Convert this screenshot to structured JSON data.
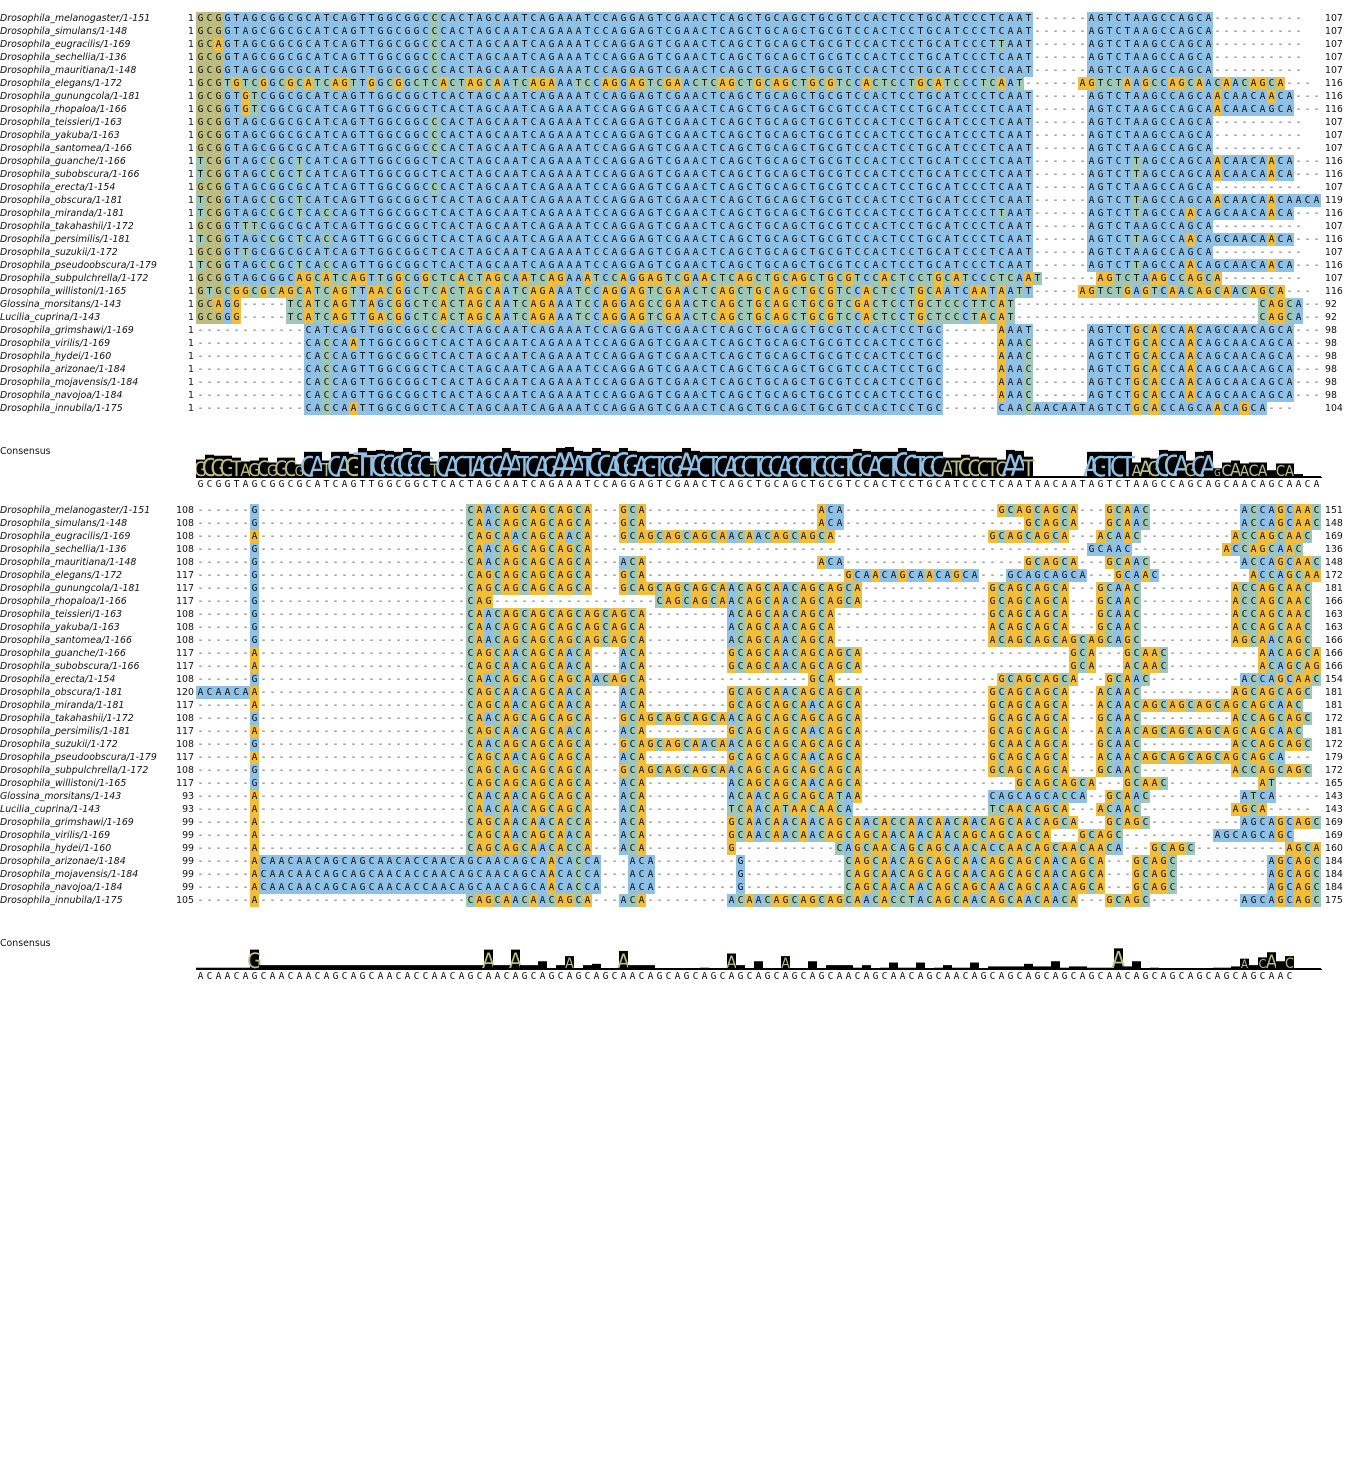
{
  "colors": {
    "blue": "#8fc1e6",
    "green": "#9fc7b8",
    "olive": "#bdbd82",
    "orange": "#f2bd3a",
    "logo_bg": "#000000"
  },
  "consensus_label": "Consensus",
  "blocks": [
    {
      "consensus": "GCGGTAGCGGCGCATCAGTTGGCGGCTCACTAGCAATCAGAAATCCAGGAGTCGAACTCAGCTGCAGCTGCGTCCACTCCTGCATCCCTCAATAACAATAGTCTAAGCCAGCAGCAACAGCAACA",
      "rows": [
        {
          "name": "Drosophila_melanogaster/1-151",
          "start": "1",
          "end": "107",
          "seq": "GCGGTAGCGGCGCATCAGTTGGCGGCCCACTAGCAATCAGAAATCCAGGAGTCGAACTCAGCTGCAGCTGCGTCCACTCCTGCATCCCTCAAT------AGTCTAAGCCAGCA----------"
        },
        {
          "name": "Drosophila_simulans/1-148",
          "start": "1",
          "end": "107",
          "seq": "GCGGTAGCGGCGCATCAGTTGGCGGCCCACTAGCAATCAGAAATCCAGGAGTCGAACTCAGCTGCAGCTGCGTCCACTCCTGCATCCCTCAAT------AGTCTAAGCCAGCA----------"
        },
        {
          "name": "Drosophila_eugracilis/1-169",
          "start": "1",
          "end": "107",
          "seq": "GCAGTAGCGGCGCATCAGTTGGCGGCCCACTAGCAATCAGAAATCCAGGAGTCGAACTCAGCTGCAGCTGCGTCCACTCCTGCATCCCTTAAT------AGTCTAAGCCAGCA----------"
        },
        {
          "name": "Drosophila_sechellia/1-136",
          "start": "1",
          "end": "107",
          "seq": "GCGGTAGCGGCGCATCAGTTGGCGGCCCACTAGCAATCAGAAATCCAGGAGTCGAACTCAGCTGCAGCTGCGTCCACTCCTGCATCCCTCAAT------AGTCTAAGCCAGCA----------"
        },
        {
          "name": "Drosophila_mauritiana/1-148",
          "start": "1",
          "end": "107",
          "seq": "GCGGTAGCGGCGCATCAGTTGGCGGCCCACTAGCAATCAGAAATCCAGGAGTCGAACTCAGCTGCAGCTGCGTCCACTCCTGCATCCCTCAAT------AGTCTAAGCCAGCA----------"
        },
        {
          "name": "Drosophila_elegans/1-172",
          "start": "1",
          "end": "116",
          "seq": "GCGTGTCGGCGCATCAGTTGGCGGCTCACTAGCAATCAGAAATCCAGGAGTCGAACTCAGCTGCAGCTGCGTCCACTCCTGCATCCCTCAAT------AGTCTAAGCCAGCAACAACAGCA---"
        },
        {
          "name": "Drosophila_gunungcola/1-181",
          "start": "1",
          "end": "116",
          "seq": "GCGGTGTCGGCGCATCAGTTGGCGGCTCACTAGCAATCAGAAATCCAGGAGTCGAACTCAGCTGCAGCTGCGTCCACTCCTGCATCCCTCAAT------AGTCTAAGCCAGCAACAACAACA---"
        },
        {
          "name": "Drosophila_rhopaloa/1-166",
          "start": "1",
          "end": "116",
          "seq": "GCGGTGTCGGCGCATCAGTTGGCGGCTCACTAGCAATCAGAAATCCAGGAGTCGAACTCAGCTGCAGCTGCGTCCACTCCTGCATCCCTCAAT------AGTCTAAGCCAGCAACAACAGCA---"
        },
        {
          "name": "Drosophila_teissieri/1-163",
          "start": "1",
          "end": "107",
          "seq": "GCGGTAGCGGCGCATCAGTTGGCGGCCCACTAGCAATCAGAAATCCAGGAGTCGAACTCAGCTGCAGCTGCGTCCACTCCTGCATCCCTCAAT------AGTCTAAGCCAGCA----------"
        },
        {
          "name": "Drosophila_yakuba/1-163",
          "start": "1",
          "end": "107",
          "seq": "GCGGTAGCGGCGCATCAGTTGGCGGCCCACTAGCAATCAGAAATCCAGGAGTCGAACTCAGCTGCAGCTGCGTCCACTCCTGCATCCCTCAAT------AGTCTAAGCCAGCA----------"
        },
        {
          "name": "Drosophila_santomea/1-166",
          "start": "1",
          "end": "107",
          "seq": "GCGGTAGCGGCGCATCAGTTGGCGGCCCACTAGCAATCAGAAATCCAGGAGTCGAACTCAGCTGCAGCTGCGTCCACTCCTGCATCCCTCAAT------AGTCTAAGCCAGCA----------"
        },
        {
          "name": "Drosophila_guanche/1-166",
          "start": "1",
          "end": "116",
          "seq": "TCGGTAGCCGCTCATCAGTTGGCGGCTCACTAGCAATCAGAAATCCAGGAGTCGAACTCAGCTGCAGCTGCGTCCACTCCTGCATCCCTCAAT------AGTCTTAGCCAGCAACAACAACA---"
        },
        {
          "name": "Drosophila_subobscura/1-166",
          "start": "1",
          "end": "116",
          "seq": "TCGGTAGCCGCTCATCAGTTGGCGGCTCACTAGCAATCAGAAATCCAGGAGTCGAACTCAGCTGCAGCTGCGTCCACTCCTGCATCCCTCAAT------AGTCTTAGCCAGCAACAACAACA---"
        },
        {
          "name": "Drosophila_erecta/1-154",
          "start": "1",
          "end": "107",
          "seq": "GCGGTAGCGGCGCATCAGTTGGCGGCCCACTAGCAATCAGAAATCCAGGAGTCGAACTCAGCTGCAGCTGCGTCCACTCCTGCATCCCTCAAT------AGTCTAAGCCAGCA----------"
        },
        {
          "name": "Drosophila_obscura/1-181",
          "start": "1",
          "end": "119",
          "seq": "TCGGTAGCCGCTCATCAGTTGGCGGCTCACTAGCAATCAGAAATCCAGGAGTCGAACTCAGCTGCAGCTGCGTCCACTCCTGCATCCCTCAAT------AGTCTTAGCCAGCAACAACAACAACA"
        },
        {
          "name": "Drosophila_miranda/1-181",
          "start": "1",
          "end": "116",
          "seq": "TCGGTAGCCGCTCACCAGTTGGCGGCTCACTAGCAATCAGAAATCCAGGAGTCGAACTCAGCTGCAGCTGCGTCCACTCCTGCATCCCTTAAT------AGTCTTAGCCAACAGCAACAACA---"
        },
        {
          "name": "Drosophila_takahashii/1-172",
          "start": "1",
          "end": "107",
          "seq": "GCGGTTTCGGCGCATCAGTTGGCGGCTCACTAGCAATCAGAAATCCAGGAGTCGAACTCAGCTGCAGCTGCGTCCACTCCTGCATCCCTCAAT------AGTCTAAGCCAGCA----------"
        },
        {
          "name": "Drosophila_persimilis/1-181",
          "start": "1",
          "end": "116",
          "seq": "TCGGTAGCCGCTCACCAGTTGGCGGCTCACTAGCAATCAGAAATCCAGGAGTCGAACTCAGCTGCAGCTGCGTCCACTCCTGCATCCCTCAAT------AGTCTTAGCCAACAGCAACAACA---"
        },
        {
          "name": "Drosophila_suzukii/1-172",
          "start": "1",
          "end": "107",
          "seq": "GCGGTTGCGGCGCATCAGTTGGCGGCTCACTAGCAATCAGAAATCCAGGAGTCGAACTCAGCTGCAGCTGCGTCCACTCCTGCATCCCTCAAT------AGTCTAAGCCAGCA----------"
        },
        {
          "name": "Drosophila_pseudoobscura/1-179",
          "start": "1",
          "end": "116",
          "seq": "TCGGTAGCCGCTCACCAGTTGGCGGCTCACTAGCAATCAGAAATCCAGGAGTCGAACTCAGCTGCAGCTGCGTCCACTCCTGCATCCCTCAAT------AGTCTTAGCCAACAGCAACAACA---"
        },
        {
          "name": "Drosophila_subpulchrella/1-172",
          "start": "1",
          "end": "107",
          "seq": "GCGGTAGCGGCAGCATCAGTTGGCGGCTCACTAGCAATCAGAAATCCAGGAGTCGAACTCAGCTGCAGCTGCGTCCACTCCTGCATCCCTCAAT------AGTCTAAGCCAGCA---------"
        },
        {
          "name": "Drosophila_willistoni/1-165",
          "start": "1",
          "end": "116",
          "seq": "GTGCGGCGCAGCATCAGTTAACGGCTCACTAGCAATCAGAAATCCAGGAGTCGAACTCAGCTGCAGCTGCGTCCACTCCTGCAATCAATAATT-----AGTCTGAGTCAACAGCAACAGCA---"
        },
        {
          "name": "Glossina_morsitans/1-143",
          "start": "1",
          "end": "92",
          "seq": "GCAGG-----TCATCAGTTAGCGGCTCACTAGCAATCAGAAATCCAGGAGCCGAACTCAGCTGCAGCTGCGTCGACTCCTGCTCCCTTCAT---------------------------CAGCA---"
        },
        {
          "name": "Lucilia_cuprina/1-143",
          "start": "1",
          "end": "92",
          "seq": "GCGGG-----TCATCAGTTGACGGCTCACTAGCAATCAGAAATCCAGGAGTCGAACTCAGCTGCAGCTGCGTCCACTCCTGCTCCCTACAT---------------------------CAGCA---"
        },
        {
          "name": "Drosophila_grimshawi/1-169",
          "start": "1",
          "end": "98",
          "seq": "------------CATCAGTTGGCGGCCCACTAGCAATCAGAAATCCAGGAGTCGAACTCAGCTGCAGCTGCGTCCACTCCTGC------AAAT------AGTCTGCACCAACAGCAACAGCA---"
        },
        {
          "name": "Drosophila_virilis/1-169",
          "start": "1",
          "end": "98",
          "seq": "------------CACCAATTGGCGGCTCACTAGCAATCAGAAATCCAGGAGTCGAACTCAGCTGCAGCTGCGTCCACTCCTGC------AAAC------AGTCTGCACCAACAGCAACAGCA---"
        },
        {
          "name": "Drosophila_hydei/1-160",
          "start": "1",
          "end": "98",
          "seq": "------------CACCAGTTGGCGGCTCACTAGCAATCAGAAATCCAGGAGTCGAACTCAGCTGCAGCTGCGTCCACTCCTGC------AAAC------AGTCTGCACCAACAGCAACAGCA---"
        },
        {
          "name": "Drosophila_arizonae/1-184",
          "start": "1",
          "end": "98",
          "seq": "------------CACCAGTTGGCGGCTCACTAGCAATCAGAAATCCAGGAGTCGAACTCAGCTGCAGCTGCGTCCACTCCTGC------AAAC------AGTCTGCACCAACAGCAACAGCA---"
        },
        {
          "name": "Drosophila_mojavensis/1-184",
          "start": "1",
          "end": "98",
          "seq": "------------CACCAGTTGGCGGCTCACTAGCAATCAGAAATCCAGGAGTCGAACTCAGCTGCAGCTGCGTCCACTCCTGC------AAAC------AGTCTGCACCAACAGCAACAGCA---"
        },
        {
          "name": "Drosophila_navojoa/1-184",
          "start": "1",
          "end": "98",
          "seq": "------------CACCAGTTGGCGGCTCACTAGCAATCAGAAATCCAGGAGTCGAACTCAGCTGCAGCTGCGTCCACTCCTGC------AAAC------AGTCTGCACCAACAGCAACAGCA---"
        },
        {
          "name": "Drosophila_innubila/1-175",
          "start": "1",
          "end": "104",
          "seq": "------------CACCAATTGGCGGCTCACTAGCAATCAGAAATCCAGGAGTCGAACTCAGCTGCAGCTGCGTCCACTCCTGC------CAACAACAATAGTCTGCACCAGCAACAGCA---"
        }
      ]
    },
    {
      "consensus": "ACAACAGCAACAACAGCAGCAACACCAACAGCAACAGCAGCAGCAGCAACAGCAGCAGCAGCAGCAGCAGCAACAGCAACAGCAACAGCAGCAGCAGCAGCAACAGCAGCAGCAGCAGCAAC",
      "rows": [
        {
          "name": "Drosophila_melanogaster/1-151",
          "start": "108",
          "end": "151",
          "seq": "------G-----------------------CAACAGCAGCAGCA---GCA-------------------ACA-----------------GCAGCAGCA---GCAAC----------ACCAGCAAC"
        },
        {
          "name": "Drosophila_simulans/1-148",
          "start": "108",
          "end": "148",
          "seq": "------G-----------------------CAACAGCAGCAGCA---GCA-------------------ACA--------------------GCAGCA---GCAAC----------ACCAGCAAC"
        },
        {
          "name": "Drosophila_eugracilis/1-169",
          "start": "108",
          "end": "169",
          "seq": "------A-----------------------CAGCAACAGCAACA---GCAGCAGCAGCAACAACAGCAGCA-----------------GCAGCAGCA---ACAAC----------ACCAGCAAC"
        },
        {
          "name": "Drosophila_sechellia/1-136",
          "start": "108",
          "end": "136",
          "seq": "------G-----------------------CAACAGCAGCAGCA-------------------------------------------------------GCAAC----------ACCAGCAAC"
        },
        {
          "name": "Drosophila_mauritiana/1-148",
          "start": "108",
          "end": "148",
          "seq": "------G-----------------------CAACAGCAGCAGCA---ACA-------------------ACA--------------------GCAGCA---GCAAC----------ACCAGCAAC"
        },
        {
          "name": "Drosophila_elegans/1-172",
          "start": "117",
          "end": "172",
          "seq": "------G-----------------------CAGCAGCAGCAGCA---GCA----------------------GCAACAGCAACAGCA---GCAGCAGCA---GCAAC----------ACCAGCAAC"
        },
        {
          "name": "Drosophila_gunungcola/1-181",
          "start": "117",
          "end": "181",
          "seq": "------G-----------------------CAGCAGCAGCAGCA---GCAGCAGCAGCAACAGCAACAGCAGCA--------------GCAGCAGCA---GCAAC----------ACCAGCAAC"
        },
        {
          "name": "Drosophila_rhopaloa/1-166",
          "start": "117",
          "end": "166",
          "seq": "------G-----------------------CAG------------------CAGCAGCAACAGCAACAGCAGCA--------------GCAGCAGCA---GCAAC----------ACCAGCAAC"
        },
        {
          "name": "Drosophila_teissieri/1-163",
          "start": "108",
          "end": "163",
          "seq": "------G-----------------------CAACAGCAGCAGCAGCAGCA---------ACAGCAACAGCA-----------------GCAGCAGCA---GCAAC----------ACCAGCAAC"
        },
        {
          "name": "Drosophila_yakuba/1-163",
          "start": "108",
          "end": "163",
          "seq": "------G-----------------------CAACAGCAGCAGCAGCAGCA---------ACAGCAACAGCA-----------------ACAGCAGCA---GCAAC----------ACCAGCAAC"
        },
        {
          "name": "Drosophila_santomea/1-166",
          "start": "108",
          "end": "166",
          "seq": "------G-----------------------CAACAGCAGCAGCAGCAGCA---------ACAGCAACAGCA-----------------ACAGCAGCAGCAGCAGC----------AGCAACAGC"
        },
        {
          "name": "Drosophila_guanche/1-166",
          "start": "117",
          "end": "166",
          "seq": "------A-----------------------CAGCAACAGCAACA---ACA---------GCAGCAACAGCAGCA-----------------------GCA---GCAAC----------AACAGCAGC"
        },
        {
          "name": "Drosophila_subobscura/1-166",
          "start": "117",
          "end": "166",
          "seq": "------A-----------------------CAGCAACAGCAACA---ACA---------GCAGCAACAGCAGCA-----------------------GCA---ACAAC----------ACAGCAGC"
        },
        {
          "name": "Drosophila_erecta/1-154",
          "start": "108",
          "end": "154",
          "seq": "------G-----------------------CAACAGCAGCAGCAACAGCA------------------GCA------------------GCAGCAGCA---GCAAC----------ACCAGCAAC"
        },
        {
          "name": "Drosophila_obscura/1-181",
          "start": "120",
          "end": "181",
          "seq": "ACAACAA-----------------------CAGCAACAGCAACA---ACA---------GCAGCAACAGCAGCA--------------GCAGCAGCA---ACAAC----------AGCAGCAGC"
        },
        {
          "name": "Drosophila_miranda/1-181",
          "start": "117",
          "end": "181",
          "seq": "------A-----------------------CAGCAACAGCAACA---ACA---------GCAGCAGCAACAGCA--------------GCAGCAGCA---ACAACAGCAGCAGCAGCAGCAAC"
        },
        {
          "name": "Drosophila_takahashii/1-172",
          "start": "108",
          "end": "172",
          "seq": "------G-----------------------CAACAGCAGCAGCA---GCAGCAGCAGCAACAGCAGCAGCAGCA--------------GCAGCAGCA---GCAAC----------ACCAGCAGC"
        },
        {
          "name": "Drosophila_persimilis/1-181",
          "start": "117",
          "end": "181",
          "seq": "------A-----------------------CAGCAACAGCAACA---ACA---------GCAGCAGCAACAGCA--------------GCAGCAGCA---ACAACAGCAGCAGCAGCAGCAAC"
        },
        {
          "name": "Drosophila_suzukii/1-172",
          "start": "108",
          "end": "172",
          "seq": "------G-----------------------CAACAGCAGCAGCA---GCAGCAGCAACAACAGCAGCAGCAGCA--------------GCAACAGCA---GCAAC----------ACCAGCAGC"
        },
        {
          "name": "Drosophila_pseudoobscura/1-179",
          "start": "117",
          "end": "179",
          "seq": "------A-----------------------CAGCAACAGCAGCA---ACA---------GCAGCAGCAACAGCA--------------GCAGCAGCA---ACAACAGCAGCAGCAGCAGCA---"
        },
        {
          "name": "Drosophila_subpulchrella/1-172",
          "start": "108",
          "end": "172",
          "seq": "------G-----------------------CAGCAGCAGCAGCA---GCAGCAGCAGCAACAGCAGCAGCAGCA--------------GCAGCAGCA---GCAAC----------ACCAGCAGC"
        },
        {
          "name": "Drosophila_willistoni/1-165",
          "start": "117",
          "end": "165",
          "seq": "------G-----------------------CAGCAGCAGCAGCA---ACA---------ACAGCAGCAACAGCA-----------------GCAGCAGCA---GCAAC----------AT-------"
        },
        {
          "name": "Glossina_morsitans/1-143",
          "start": "93",
          "end": "143",
          "seq": "------A-----------------------CAACAACAGCAGCA---ACA---------ACAACAGCAGCATAA--------------CAGCAGCACCA--GCAAC----------ATCA-----"
        },
        {
          "name": "Lucilia_cuprina/1-143",
          "start": "93",
          "end": "143",
          "seq": "------A-----------------------CAACAACAGCAGCA---ACA---------TCAACATAACAACA---------------TCAACAGCA---ACAAC----------AGCA-----"
        },
        {
          "name": "Drosophila_grimshawi/1-169",
          "start": "99",
          "end": "169",
          "seq": "------A-----------------------CAGCAACAACACCA---ACA---------GCAACAACAACAGCAACACCAACAACAACAGCAACAGCA---GCAGC----------AGCAGCAGC"
        },
        {
          "name": "Drosophila_virilis/1-169",
          "start": "99",
          "end": "169",
          "seq": "------A-----------------------CAGCAACAGCAACA---ACA---------GCAACAACAACAGCAGCAACAACAACAGCAGCAGCA---GCAGC----------AGCAGCAGC"
        },
        {
          "name": "Drosophila_hydei/1-160",
          "start": "99",
          "end": "160",
          "seq": "------A-----------------------CAGCAGCAACACCA---ACA---------G-----------CAGCAACAGCAGCAACACCAACAGCAACAACA---GCAGC----------AGCAGCAGC"
        },
        {
          "name": "Drosophila_arizonae/1-184",
          "start": "99",
          "end": "184",
          "seq": "------ACAACAACAGCAGCAACACCAACAGCAACAGCAACACCA---ACA---------G-----------CAGCAACAGCAGCAACAGCAGCAACAGCA---GCAGC----------AGCAGCAGC"
        },
        {
          "name": "Drosophila_mojavensis/1-184",
          "start": "99",
          "end": "184",
          "seq": "------ACAACAACAGCAGCAACACCAACAGCAACAGCAACACCA---ACA---------G-----------CAGCAACAGCAGCAACAGCAGCAACAGCA---GCAGC----------AGCAGCAAC"
        },
        {
          "name": "Drosophila_navojoa/1-184",
          "start": "99",
          "end": "184",
          "seq": "------ACAACAACAGCAGCAACACCAACAGCAACAGCAACACCA---ACA---------G-----------CAGCAACAACAGCAGCAACAGCAACAGCA---GCAGC----------AGCAGCAAC"
        },
        {
          "name": "Drosophila_innubila/1-175",
          "start": "105",
          "end": "175",
          "seq": "------A-----------------------CAGCAACAACAGCA---ACA---------ACAACAGCAGCAGCAACACCTACAGCAACAGCAACAACA---GCAGC----------AGCAGCAGC"
        }
      ]
    }
  ]
}
